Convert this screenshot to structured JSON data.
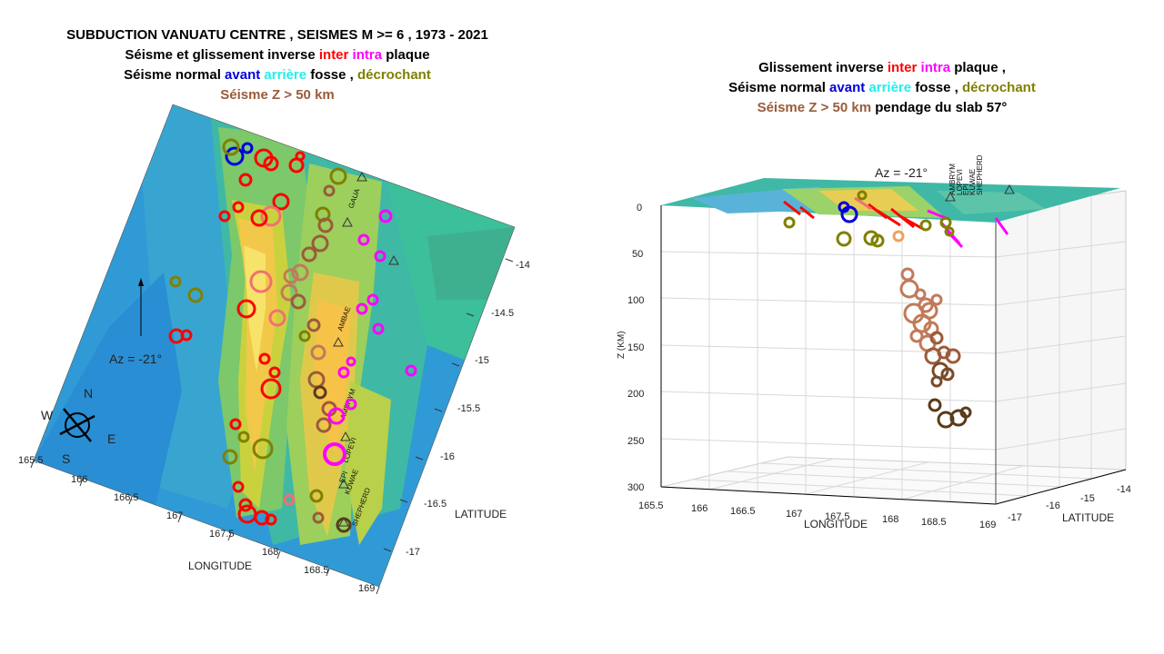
{
  "left_panel": {
    "title_line1": "SUBDUCTION VANUATU  CENTRE , SEISMES M >=  6  , 1973 - 2021",
    "line2": [
      "Séisme et glissement inverse ",
      "inter",
      " ",
      "intra",
      " plaque"
    ],
    "line3": [
      "Séisme normal ",
      "avant",
      " ",
      "arrière",
      " fosse ,  ",
      "décrochant"
    ],
    "line4": "Séisme Z > 50 km",
    "azimuth": "Az =  -21°",
    "compass": {
      "n": "N",
      "s": "S",
      "e": "E",
      "w": "W"
    },
    "volcanoes": [
      "GAUA",
      "AMBAE",
      "AMBRYM",
      "LOPEVI",
      "EPI",
      "KUWAE",
      "SHEPHERD"
    ],
    "longitude_label": "LONGITUDE",
    "latitude_label": "LATITUDE",
    "longitude_ticks": [
      "165.5",
      "166",
      "166.5",
      "167",
      "167.5",
      "168",
      "168.5",
      "169"
    ],
    "latitude_ticks": [
      "-14",
      "-14.5",
      "-15",
      "-15.5",
      "-16",
      "-16.5",
      "-17"
    ]
  },
  "right_panel": {
    "line1": [
      "Glissement inverse ",
      "inter",
      " ",
      "intra",
      " plaque ,"
    ],
    "line2": [
      "Séisme normal ",
      "avant",
      " ",
      "arrière",
      " fosse ,  ",
      "décrochant"
    ],
    "line3": [
      "Séisme Z > 50 km",
      "  pendage du slab 57°"
    ],
    "azimuth": "Az =  -21°",
    "volcano_labels": [
      "AMBRYM",
      "LOPEVI",
      "EPI",
      "KUWAE",
      "SHEPHERD"
    ],
    "z_label": "Z (KM)",
    "z_ticks": [
      "0",
      "50",
      "100",
      "150",
      "200",
      "250",
      "300"
    ],
    "longitude_label": "LONGITUDE",
    "latitude_label": "LATITUDE",
    "longitude_ticks": [
      "165.5",
      "166",
      "166.5",
      "167",
      "167.5",
      "168",
      "168.5",
      "169"
    ],
    "latitude_ticks": [
      "-17",
      "-16",
      "-15",
      "-14"
    ]
  },
  "colors": {
    "inter": "#ff0000",
    "inter_light": "#f07070",
    "intra": "#ff00ff",
    "avant": "#0000dd",
    "arriere": "#22eeee",
    "decrochant": "#808000",
    "deep": "#9b5b3b"
  }
}
